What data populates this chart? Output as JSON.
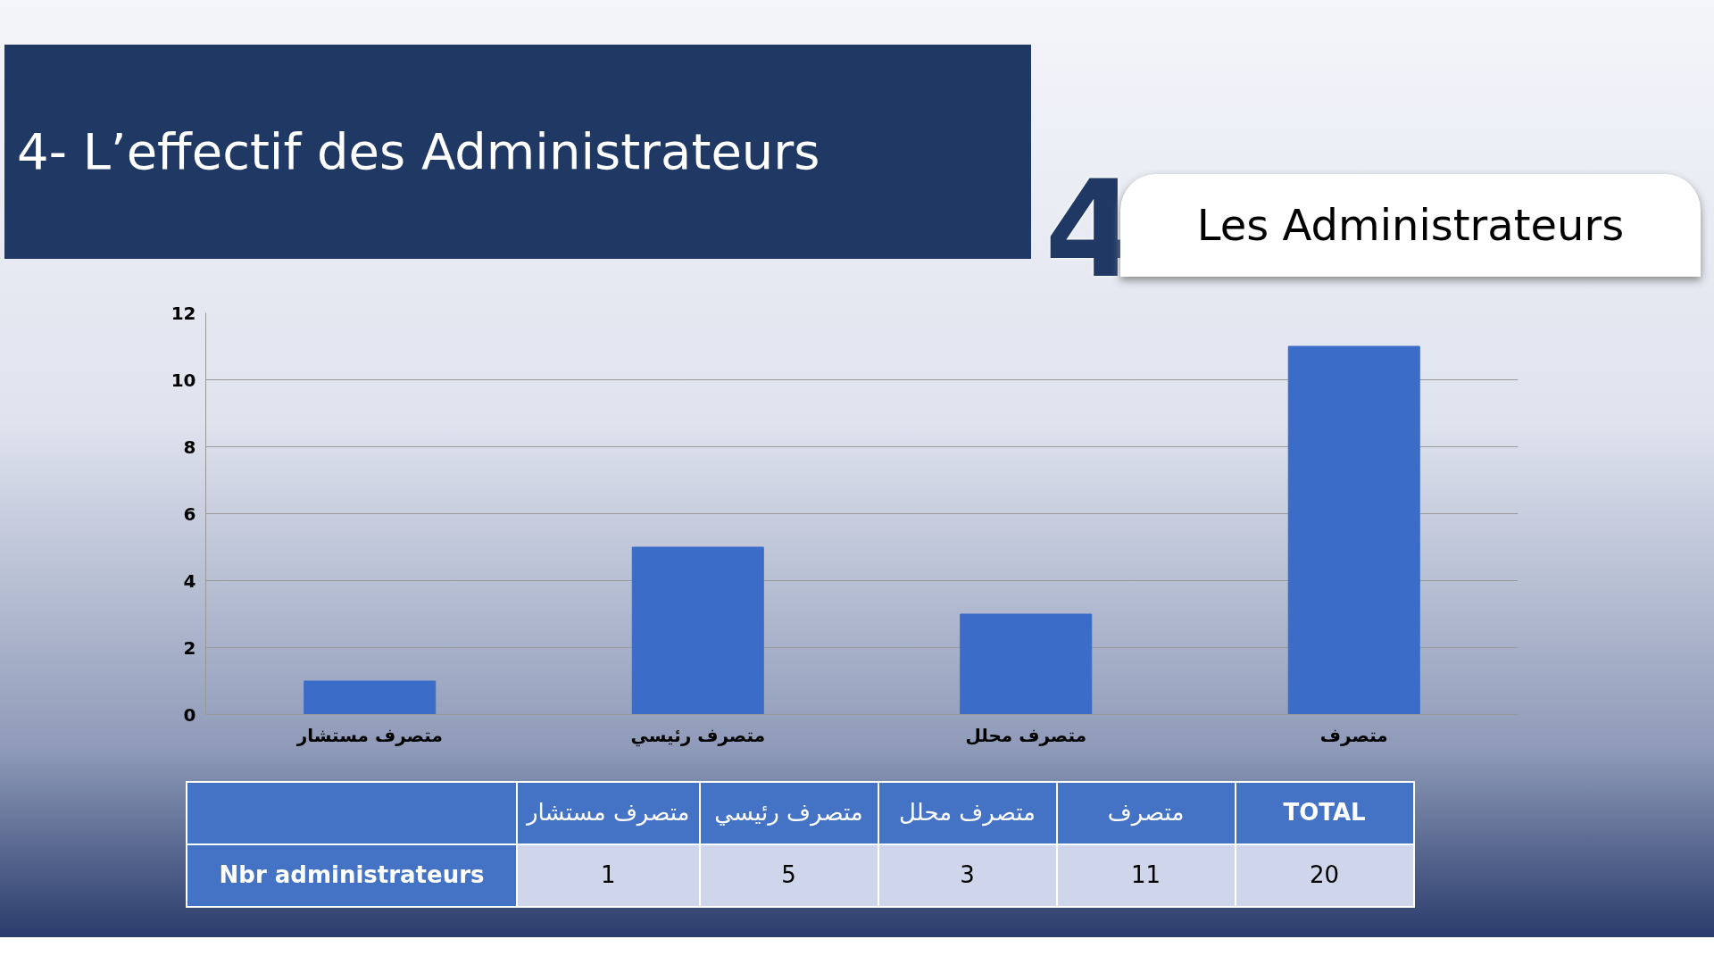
{
  "chart_data": {
    "type": "bar",
    "title": "4- L’effectif des Administrateurs",
    "subtitle": "Les Administrateurs",
    "categories": [
      "متصرف مستشار",
      "متصرف رئيسي",
      "متصرف محلل",
      "متصرف"
    ],
    "values": [
      1,
      5,
      3,
      11
    ],
    "color": "#3a6cc8",
    "ylim": [
      0,
      12
    ],
    "yticks": [
      0,
      2,
      4,
      6,
      8,
      10,
      12
    ],
    "grid": "y",
    "annotations": [
      "4",
      "Nbr administrateurs",
      "TOTAL",
      "1",
      "5",
      "3",
      "11",
      "20"
    ]
  }
}
